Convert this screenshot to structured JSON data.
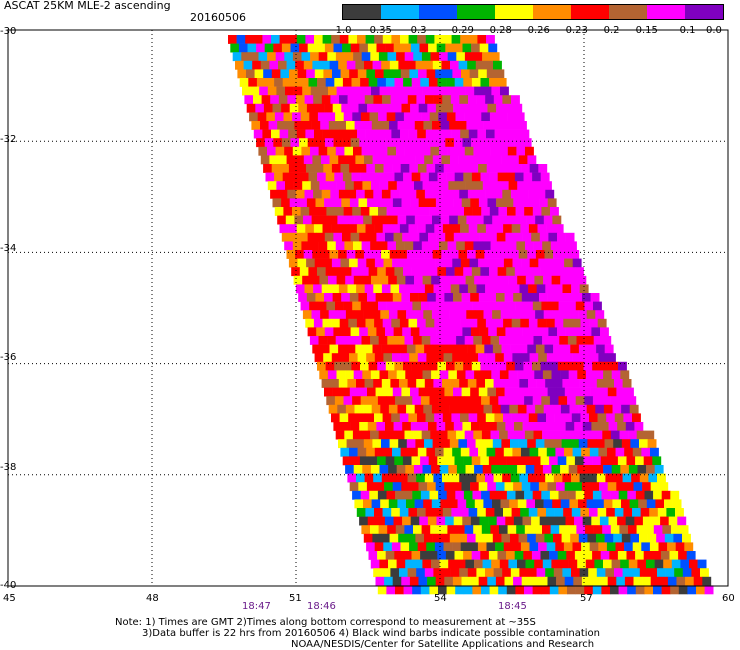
{
  "header": {
    "title": "ASCAT 25KM MLE-2 ascending",
    "date": "20160506"
  },
  "colorbar": {
    "colors": [
      "#3c3c3c",
      "#00b4ff",
      "#0050ff",
      "#00b400",
      "#ffff00",
      "#ff8c00",
      "#ff0000",
      "#b46432",
      "#ff00ff",
      "#7f00c0"
    ],
    "labels": [
      "-1.0",
      "-0.35",
      "-0.3",
      "-0.29",
      "-0.28",
      "-0.26",
      "-0.23",
      "-0.2",
      "-0.15",
      "-0.1",
      "0.0"
    ]
  },
  "axes": {
    "lat_labels": [
      "-30",
      "-32",
      "-34",
      "-36",
      "-38",
      "-40"
    ],
    "lon_labels": [
      "45",
      "48",
      "51",
      "54",
      "57",
      "60"
    ],
    "lat_range": [
      -40,
      -30
    ],
    "lon_range": [
      45,
      60
    ]
  },
  "times": [
    "18:47",
    "18:46",
    "18:45"
  ],
  "notes": [
    "Note: 1) Times are GMT 2)Times along bottom correspond to measurement at ~35S",
    "3)Data buffer is 22 hrs from 20160506 4) Black wind barbs indicate possible contamination",
    "NOAA/NESDIS/Center for Satellite Applications and Research"
  ]
}
